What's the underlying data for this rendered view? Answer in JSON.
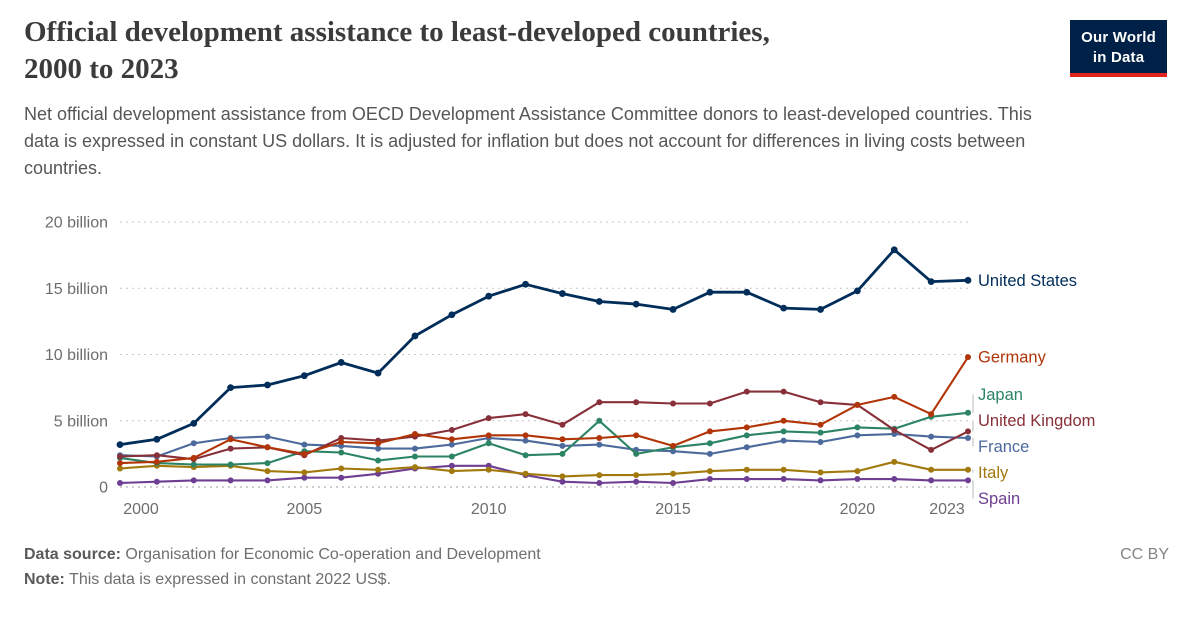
{
  "header": {
    "title_lines": [
      "Official development assistance to least-developed countries,",
      "2000 to 2023"
    ],
    "subtitle": "Net official development assistance from OECD Development Assistance Committee donors to least-developed countries. This data is expressed in constant US dollars. It is adjusted for inflation but does not account for differences in living costs between countries.",
    "logo": {
      "line1": "Our World",
      "line2": "in Data",
      "bg_color": "#002147",
      "stripe_color": "#e0231c"
    }
  },
  "footer": {
    "source_label": "Data source:",
    "source_text": "Organisation for Economic Co-operation and Development",
    "license": "CC BY",
    "note_label": "Note:",
    "note_text": "This data is expressed in constant 2022 US$."
  },
  "chart_data": {
    "type": "line",
    "title": "Official development assistance to least-developed countries, 2000 to 2023",
    "xlabel": "",
    "ylabel": "",
    "ylim": [
      0,
      20
    ],
    "grid": "dotted-horizontal",
    "legend_position": "right-end-labels",
    "x": [
      2000,
      2001,
      2002,
      2003,
      2004,
      2005,
      2006,
      2007,
      2008,
      2009,
      2010,
      2011,
      2012,
      2013,
      2014,
      2015,
      2016,
      2017,
      2018,
      2019,
      2020,
      2021,
      2022,
      2023
    ],
    "xticks": [
      2000,
      2005,
      2010,
      2015,
      2020,
      2023
    ],
    "yticks": [
      {
        "value": 0,
        "label": "0"
      },
      {
        "value": 5,
        "label": "5 billion"
      },
      {
        "value": 10,
        "label": "10 billion"
      },
      {
        "value": 15,
        "label": "15 billion"
      },
      {
        "value": 20,
        "label": "20 billion"
      }
    ],
    "series": [
      {
        "name": "Spain",
        "color": "#6d3e91",
        "values": [
          0.3,
          0.4,
          0.5,
          0.5,
          0.5,
          0.7,
          0.7,
          1.0,
          1.4,
          1.6,
          1.6,
          0.9,
          0.4,
          0.3,
          0.4,
          0.3,
          0.6,
          0.6,
          0.6,
          0.5,
          0.6,
          0.6,
          0.5,
          0.5
        ]
      },
      {
        "name": "Italy",
        "color": "#a2790d",
        "values": [
          1.4,
          1.6,
          1.5,
          1.6,
          1.2,
          1.1,
          1.4,
          1.3,
          1.5,
          1.2,
          1.3,
          1.0,
          0.8,
          0.9,
          0.9,
          1.0,
          1.2,
          1.3,
          1.3,
          1.1,
          1.2,
          1.9,
          1.3,
          1.3
        ]
      },
      {
        "name": "France",
        "color": "#4c6a9c",
        "values": [
          2.4,
          2.3,
          3.3,
          3.7,
          3.8,
          3.2,
          3.1,
          2.9,
          2.9,
          3.2,
          3.7,
          3.5,
          3.1,
          3.2,
          2.8,
          2.7,
          2.5,
          3.0,
          3.5,
          3.4,
          3.9,
          4.0,
          3.8,
          3.7
        ]
      },
      {
        "name": "Japan",
        "color": "#2c8465",
        "values": [
          2.2,
          1.8,
          1.7,
          1.7,
          1.8,
          2.7,
          2.6,
          2.0,
          2.3,
          2.3,
          3.3,
          2.4,
          2.5,
          5.0,
          2.5,
          3.0,
          3.3,
          3.9,
          4.2,
          4.1,
          4.5,
          4.4,
          5.3,
          5.6
        ]
      },
      {
        "name": "United Kingdom",
        "color": "#883039",
        "values": [
          2.3,
          2.4,
          2.1,
          2.9,
          3.0,
          2.4,
          3.7,
          3.5,
          3.8,
          4.3,
          5.2,
          5.5,
          4.7,
          6.4,
          6.4,
          6.3,
          6.3,
          7.2,
          7.2,
          6.4,
          6.2,
          4.3,
          2.8,
          4.2
        ]
      },
      {
        "name": "Germany",
        "color": "#b13507",
        "values": [
          1.8,
          1.9,
          2.2,
          3.6,
          3.0,
          2.5,
          3.4,
          3.3,
          4.0,
          3.6,
          3.9,
          3.9,
          3.6,
          3.7,
          3.9,
          3.1,
          4.2,
          4.5,
          5.0,
          4.7,
          6.2,
          6.8,
          5.5,
          9.8
        ]
      },
      {
        "name": "United States",
        "color": "#002d59",
        "values": [
          3.2,
          3.6,
          4.8,
          7.5,
          7.7,
          8.4,
          9.4,
          8.6,
          11.4,
          13.0,
          14.4,
          15.3,
          14.6,
          14.0,
          13.8,
          13.4,
          14.7,
          14.7,
          13.5,
          13.4,
          14.8,
          17.9,
          15.5,
          15.6
        ]
      }
    ]
  }
}
